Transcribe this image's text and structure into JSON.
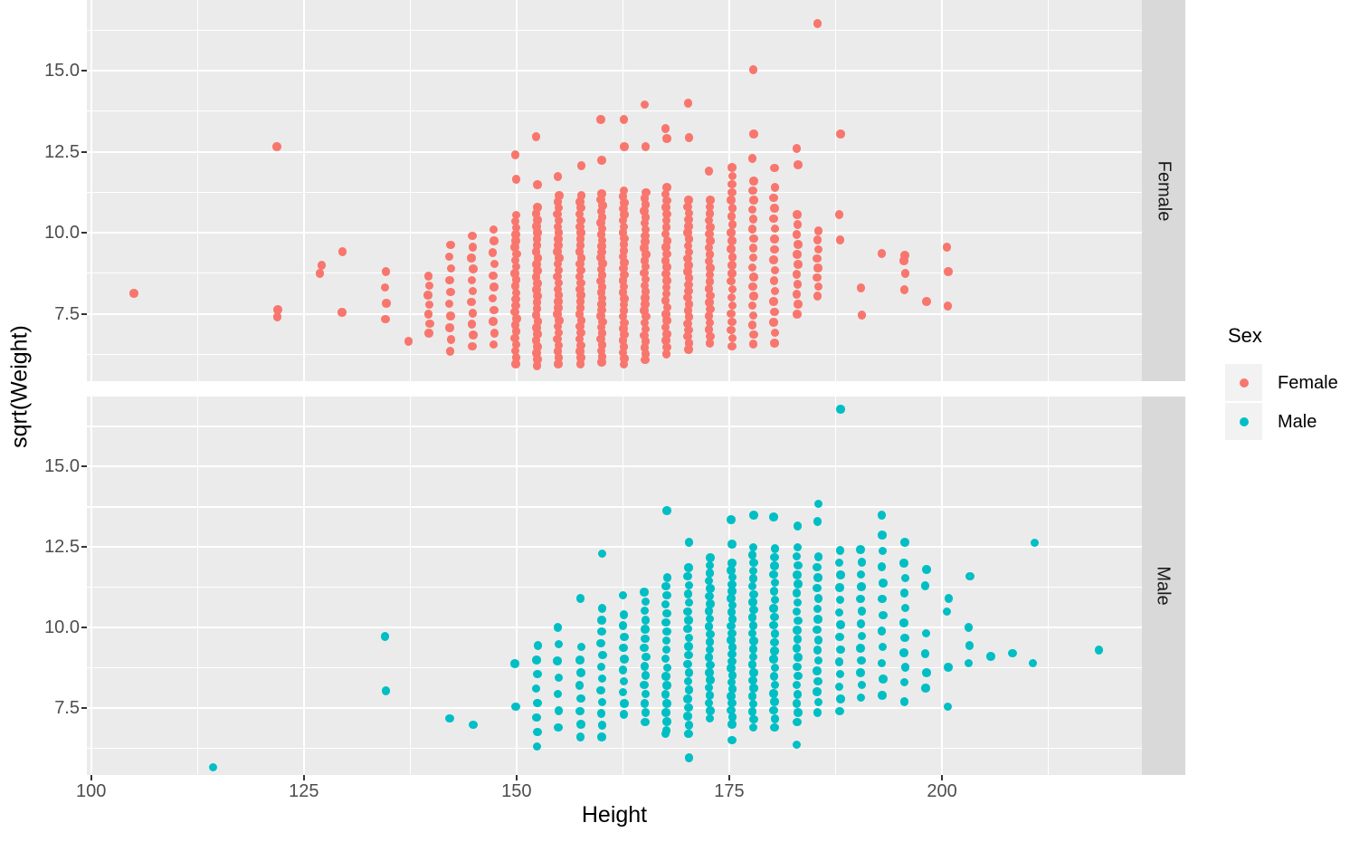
{
  "chart_data": {
    "type": "scatter",
    "title": "",
    "xlabel": "Height",
    "ylabel": "sqrt(Weight)",
    "legend_title": "Sex",
    "facet_labels": [
      "Female",
      "Male"
    ],
    "legend_position": "right",
    "grid": "on",
    "xlim": [
      99.5,
      223.5
    ],
    "ylim": [
      5.42,
      17.18
    ],
    "x_ticks": [
      100,
      125,
      150,
      175,
      200
    ],
    "x_tick_labels": [
      "100",
      "125",
      "150",
      "175",
      "200"
    ],
    "x_minor_ticks": [
      112.5,
      137.5,
      162.5,
      187.5,
      212.5
    ],
    "y_ticks": [
      7.5,
      10.0,
      12.5,
      15.0
    ],
    "y_tick_labels": [
      "7.5",
      "10.0",
      "12.5",
      "15.0"
    ],
    "y_minor_ticks": [
      6.25,
      8.75,
      11.25,
      13.75,
      16.25
    ],
    "style_colors": {
      "panel_background": "#EBEBEB",
      "strip_background": "#D9D9D9",
      "legend_key_background": "#F2F2F2",
      "gridline": "#FFFFFF",
      "tick_text": "#4D4D4D",
      "tick_mark": "#333333"
    },
    "series": [
      {
        "name": "Female",
        "facet": "Female",
        "color": "#F8766D",
        "columns": [
          {
            "x": 134.6,
            "y_min": 7.34,
            "y_max": 8.8,
            "n": 4
          },
          {
            "x": 139.7,
            "y_min": 6.9,
            "y_max": 8.66,
            "n": 7
          },
          {
            "x": 142.2,
            "y_min": 6.34,
            "y_max": 9.63,
            "n": 10
          },
          {
            "x": 144.8,
            "y_min": 6.5,
            "y_max": 9.9,
            "n": 11
          },
          {
            "x": 147.3,
            "y_min": 6.55,
            "y_max": 10.1,
            "n": 11
          },
          {
            "x": 149.9,
            "y_min": 5.95,
            "y_max": 10.55,
            "n": 24
          },
          {
            "x": 152.4,
            "y_min": 5.9,
            "y_max": 10.78,
            "n": 26
          },
          {
            "x": 154.9,
            "y_min": 5.95,
            "y_max": 11.15,
            "n": 28
          },
          {
            "x": 157.5,
            "y_min": 5.95,
            "y_max": 11.15,
            "n": 28
          },
          {
            "x": 160.0,
            "y_min": 6.0,
            "y_max": 11.2,
            "n": 30
          },
          {
            "x": 162.6,
            "y_min": 5.93,
            "y_max": 11.3,
            "n": 30
          },
          {
            "x": 165.1,
            "y_min": 6.07,
            "y_max": 11.25,
            "n": 28
          },
          {
            "x": 167.6,
            "y_min": 6.26,
            "y_max": 11.4,
            "n": 26
          },
          {
            "x": 170.2,
            "y_min": 6.4,
            "y_max": 11.0,
            "n": 24
          },
          {
            "x": 172.7,
            "y_min": 6.6,
            "y_max": 11.0,
            "n": 22
          },
          {
            "x": 175.3,
            "y_min": 6.5,
            "y_max": 11.75,
            "n": 22
          },
          {
            "x": 177.8,
            "y_min": 6.56,
            "y_max": 11.6,
            "n": 18
          },
          {
            "x": 180.3,
            "y_min": 6.6,
            "y_max": 11.4,
            "n": 16
          },
          {
            "x": 183.0,
            "y_min": 7.49,
            "y_max": 10.56,
            "n": 11
          },
          {
            "x": 185.4,
            "y_min": 8.05,
            "y_max": 10.06,
            "n": 8
          }
        ],
        "points": [
          [
            105.0,
            8.13
          ],
          [
            121.9,
            12.65
          ],
          [
            121.9,
            7.62
          ],
          [
            121.9,
            7.4
          ],
          [
            127.0,
            9.0
          ],
          [
            127.0,
            8.74
          ],
          [
            129.5,
            9.41
          ],
          [
            129.5,
            7.54
          ],
          [
            137.2,
            6.65
          ],
          [
            149.9,
            12.4
          ],
          [
            149.9,
            11.65
          ],
          [
            152.4,
            12.96
          ],
          [
            152.4,
            11.48
          ],
          [
            154.9,
            11.73
          ],
          [
            157.5,
            12.07
          ],
          [
            160.0,
            13.49
          ],
          [
            160.0,
            12.24
          ],
          [
            162.6,
            13.49
          ],
          [
            162.6,
            12.65
          ],
          [
            165.1,
            13.96
          ],
          [
            165.1,
            12.65
          ],
          [
            167.6,
            13.21
          ],
          [
            167.6,
            12.9
          ],
          [
            170.2,
            14.0
          ],
          [
            170.2,
            12.94
          ],
          [
            172.7,
            11.9
          ],
          [
            175.3,
            12.01
          ],
          [
            177.8,
            15.03
          ],
          [
            177.8,
            13.04
          ],
          [
            177.8,
            12.29
          ],
          [
            180.3,
            12.0
          ],
          [
            183.0,
            12.6
          ],
          [
            183.0,
            12.1
          ],
          [
            185.4,
            16.45
          ],
          [
            188.0,
            13.04
          ],
          [
            188.0,
            10.56
          ],
          [
            188.0,
            9.78
          ],
          [
            190.5,
            8.3
          ],
          [
            190.5,
            7.46
          ],
          [
            193.0,
            9.36
          ],
          [
            195.6,
            9.3
          ],
          [
            195.6,
            9.13
          ],
          [
            195.6,
            8.74
          ],
          [
            195.6,
            8.24
          ],
          [
            198.1,
            7.88
          ],
          [
            200.7,
            9.55
          ],
          [
            200.7,
            8.8
          ],
          [
            200.7,
            7.74
          ]
        ]
      },
      {
        "name": "Male",
        "facet": "Male",
        "color": "#00BFC4",
        "columns": [
          {
            "x": 152.4,
            "y_min": 6.3,
            "y_max": 9.45,
            "n": 8
          },
          {
            "x": 154.9,
            "y_min": 6.9,
            "y_max": 10.0,
            "n": 7
          },
          {
            "x": 157.5,
            "y_min": 6.6,
            "y_max": 9.4,
            "n": 8
          },
          {
            "x": 160.0,
            "y_min": 6.6,
            "y_max": 10.6,
            "n": 12
          },
          {
            "x": 162.6,
            "y_min": 7.3,
            "y_max": 10.4,
            "n": 10
          },
          {
            "x": 165.1,
            "y_min": 7.07,
            "y_max": 11.1,
            "n": 15
          },
          {
            "x": 167.6,
            "y_min": 6.8,
            "y_max": 11.56,
            "n": 18
          },
          {
            "x": 170.2,
            "y_min": 6.7,
            "y_max": 11.86,
            "n": 20
          },
          {
            "x": 172.7,
            "y_min": 7.18,
            "y_max": 12.17,
            "n": 22
          },
          {
            "x": 175.3,
            "y_min": 7.0,
            "y_max": 12.0,
            "n": 24
          },
          {
            "x": 177.8,
            "y_min": 6.9,
            "y_max": 12.5,
            "n": 24
          },
          {
            "x": 180.3,
            "y_min": 6.9,
            "y_max": 12.45,
            "n": 22
          },
          {
            "x": 183.0,
            "y_min": 7.07,
            "y_max": 12.5,
            "n": 20
          },
          {
            "x": 185.4,
            "y_min": 7.36,
            "y_max": 12.2,
            "n": 16
          },
          {
            "x": 188.0,
            "y_min": 7.4,
            "y_max": 12.4,
            "n": 14
          },
          {
            "x": 190.5,
            "y_min": 7.83,
            "y_max": 12.42,
            "n": 13
          },
          {
            "x": 193.0,
            "y_min": 7.9,
            "y_max": 12.88,
            "n": 11
          },
          {
            "x": 195.6,
            "y_min": 8.3,
            "y_max": 12.0,
            "n": 9
          }
        ],
        "points": [
          [
            114.3,
            5.66
          ],
          [
            134.6,
            9.73
          ],
          [
            134.6,
            8.03
          ],
          [
            142.2,
            7.18
          ],
          [
            144.8,
            6.98
          ],
          [
            149.9,
            8.88
          ],
          [
            149.9,
            7.55
          ],
          [
            157.5,
            10.9
          ],
          [
            160.0,
            12.3
          ],
          [
            162.6,
            11.0
          ],
          [
            167.6,
            13.64
          ],
          [
            167.6,
            6.7
          ],
          [
            170.2,
            12.65
          ],
          [
            170.2,
            6.7
          ],
          [
            170.2,
            5.95
          ],
          [
            175.3,
            13.36
          ],
          [
            175.3,
            12.6
          ],
          [
            175.3,
            6.5
          ],
          [
            177.8,
            13.5
          ],
          [
            180.3,
            13.44
          ],
          [
            183.0,
            13.16
          ],
          [
            183.0,
            6.36
          ],
          [
            185.4,
            13.84
          ],
          [
            185.4,
            13.3
          ],
          [
            188.0,
            16.78
          ],
          [
            193.0,
            13.5
          ],
          [
            195.6,
            12.65
          ],
          [
            195.6,
            7.7
          ],
          [
            198.1,
            11.8
          ],
          [
            198.1,
            11.3
          ],
          [
            198.1,
            9.82
          ],
          [
            198.1,
            9.19
          ],
          [
            198.1,
            8.6
          ],
          [
            198.1,
            8.12
          ],
          [
            200.7,
            10.9
          ],
          [
            200.7,
            10.5
          ],
          [
            200.7,
            8.77
          ],
          [
            200.7,
            7.55
          ],
          [
            203.2,
            11.6
          ],
          [
            203.2,
            10.0
          ],
          [
            203.2,
            9.45
          ],
          [
            203.2,
            8.9
          ],
          [
            205.7,
            9.1
          ],
          [
            208.3,
            9.2
          ],
          [
            210.8,
            12.63
          ],
          [
            210.8,
            8.9
          ],
          [
            218.4,
            9.3
          ]
        ]
      }
    ]
  }
}
